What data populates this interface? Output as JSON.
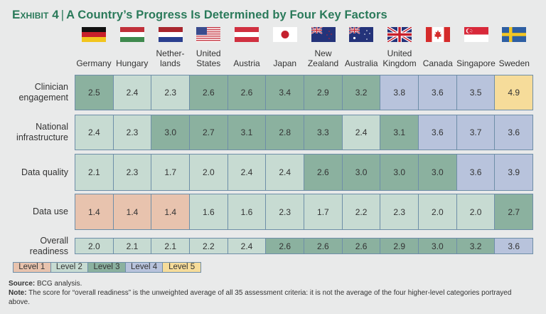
{
  "title": {
    "exhibit": "Exhibit 4",
    "separator": "|",
    "text": "A Country’s Progress Is Determined by Four Key Factors"
  },
  "chart_data": {
    "type": "heatmap",
    "title": "A Country’s Progress Is Determined by Four Key Factors",
    "columns": [
      {
        "name": "Germany",
        "label_lines": [
          "",
          "Germany"
        ],
        "flag": "germany-flag"
      },
      {
        "name": "Hungary",
        "label_lines": [
          "",
          "Hungary"
        ],
        "flag": "hungary-flag"
      },
      {
        "name": "Netherlands",
        "label_lines": [
          "Nether-",
          "lands"
        ],
        "flag": "netherlands-flag"
      },
      {
        "name": "United States",
        "label_lines": [
          "United",
          "States"
        ],
        "flag": "usa-flag"
      },
      {
        "name": "Austria",
        "label_lines": [
          "",
          "Austria"
        ],
        "flag": "austria-flag"
      },
      {
        "name": "Japan",
        "label_lines": [
          "",
          "Japan"
        ],
        "flag": "japan-flag"
      },
      {
        "name": "New Zealand",
        "label_lines": [
          "New",
          "Zealand"
        ],
        "flag": "new-zealand-flag"
      },
      {
        "name": "Australia",
        "label_lines": [
          "",
          "Australia"
        ],
        "flag": "australia-flag"
      },
      {
        "name": "United Kingdom",
        "label_lines": [
          "United",
          "Kingdom"
        ],
        "flag": "uk-flag"
      },
      {
        "name": "Canada",
        "label_lines": [
          "",
          "Canada"
        ],
        "flag": "canada-flag"
      },
      {
        "name": "Singapore",
        "label_lines": [
          "",
          "Singapore"
        ],
        "flag": "singapore-flag"
      },
      {
        "name": "Sweden",
        "label_lines": [
          "",
          "Sweden"
        ],
        "flag": "sweden-flag"
      }
    ],
    "rows": [
      {
        "name": "Clinician engagement",
        "label_lines": [
          "Clinician",
          "engagement"
        ],
        "values": [
          2.5,
          2.4,
          2.3,
          2.6,
          2.6,
          3.4,
          2.9,
          3.2,
          3.8,
          3.6,
          3.5,
          4.9
        ],
        "levels": [
          3,
          2,
          2,
          3,
          3,
          3,
          3,
          3,
          4,
          4,
          4,
          5
        ]
      },
      {
        "name": "National infrastructure",
        "label_lines": [
          "National",
          "infrastructure"
        ],
        "values": [
          2.4,
          2.3,
          3.0,
          2.7,
          3.1,
          2.8,
          3.3,
          2.4,
          3.1,
          3.6,
          3.7,
          3.6
        ],
        "levels": [
          2,
          2,
          3,
          3,
          3,
          3,
          3,
          2,
          3,
          4,
          4,
          4
        ]
      },
      {
        "name": "Data quality",
        "label_lines": [
          "Data quality"
        ],
        "values": [
          2.1,
          2.3,
          1.7,
          2.0,
          2.4,
          2.4,
          2.6,
          3.0,
          3.0,
          3.0,
          3.6,
          3.9
        ],
        "levels": [
          2,
          2,
          2,
          2,
          2,
          2,
          3,
          3,
          3,
          3,
          4,
          4
        ]
      },
      {
        "name": "Data use",
        "label_lines": [
          "Data use"
        ],
        "values": [
          1.4,
          1.4,
          1.4,
          1.6,
          1.6,
          2.3,
          1.7,
          2.2,
          2.3,
          2.0,
          2.0,
          2.7
        ],
        "levels": [
          1,
          1,
          1,
          2,
          2,
          2,
          2,
          2,
          2,
          2,
          2,
          3
        ]
      },
      {
        "name": "Overall readiness",
        "label_lines": [
          "Overall",
          "readiness"
        ],
        "values": [
          2.0,
          2.1,
          2.1,
          2.2,
          2.4,
          2.6,
          2.6,
          2.6,
          2.9,
          3.0,
          3.2,
          3.6
        ],
        "levels": [
          2,
          2,
          2,
          2,
          2,
          3,
          3,
          3,
          3,
          3,
          3,
          4
        ]
      }
    ],
    "legend": [
      {
        "label": "Level 1",
        "level": 1,
        "color": "#e8c3ae"
      },
      {
        "label": "Level 2",
        "level": 2,
        "color": "#c7dbd2"
      },
      {
        "label": "Level 3",
        "level": 3,
        "color": "#8bb19f"
      },
      {
        "label": "Level 4",
        "level": 4,
        "color": "#b8c3dc"
      },
      {
        "label": "Level 5",
        "level": 5,
        "color": "#f6dc9a"
      }
    ],
    "legend_position": "bottom-left"
  },
  "notes": {
    "source_label": "Source:",
    "source_text": " BCG analysis.",
    "note_label": "Note:",
    "note_text": " The score for “overall readiness” is the unweighted average of all 35 assessment criteria: it is not the average of the four higher-level categories portrayed above."
  }
}
